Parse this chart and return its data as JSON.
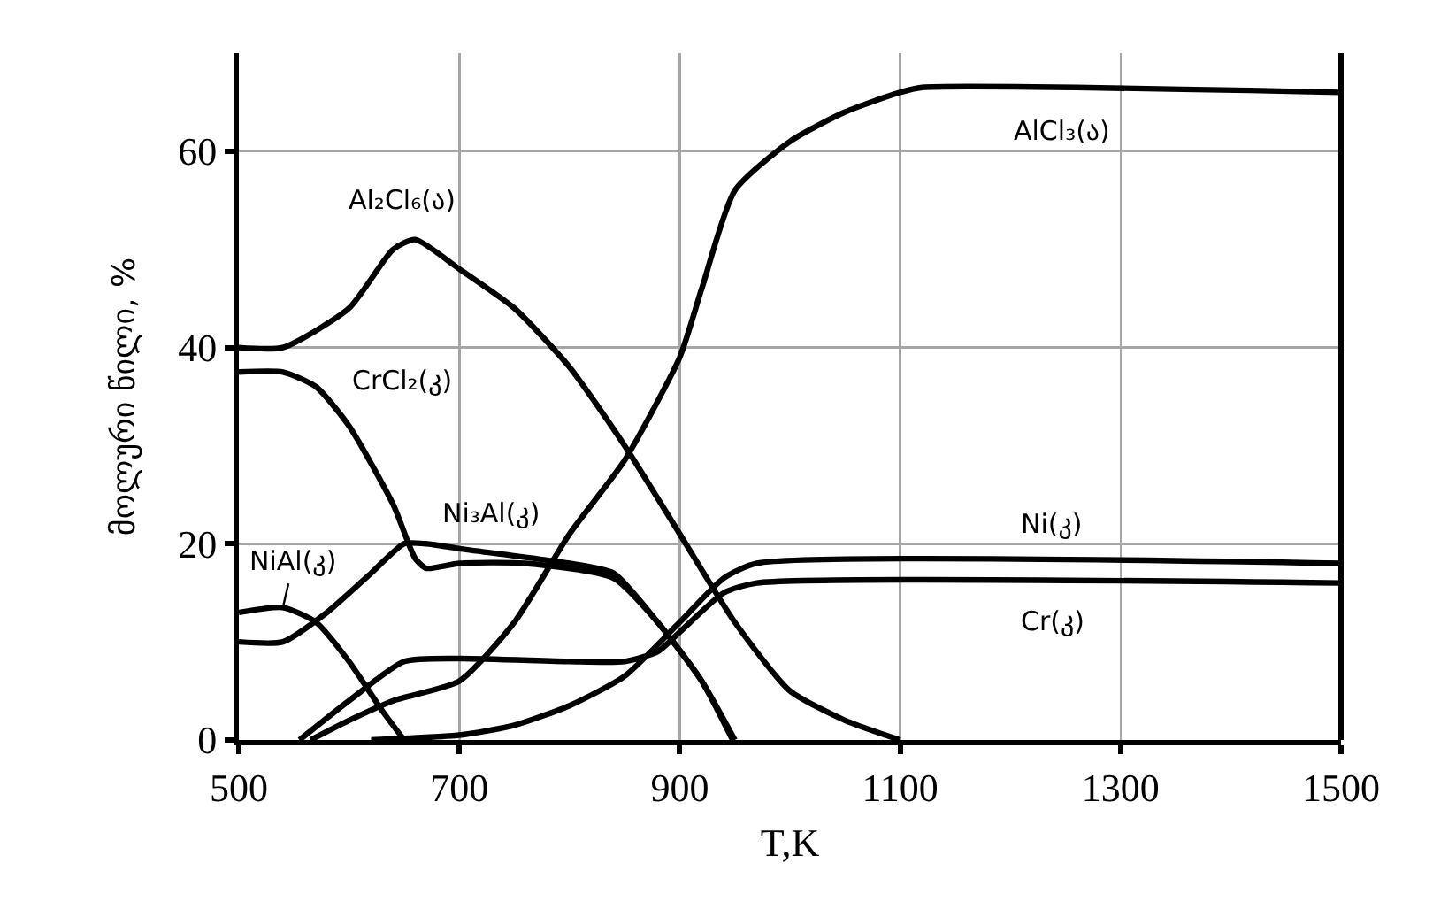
{
  "chart_data": {
    "type": "line",
    "xlabel": "T,K",
    "ylabel": "მოლური წილი, %",
    "xlim": [
      500,
      1500
    ],
    "ylim": [
      0,
      70
    ],
    "xticks": [
      500,
      700,
      900,
      1100,
      1300,
      1500
    ],
    "yticks": [
      0,
      20,
      40,
      60
    ],
    "grid": true,
    "marker": "none",
    "line_style": "solid",
    "series": [
      {
        "color": "#000000",
        "x": [
          565,
          600,
          640,
          700,
          750,
          800,
          850,
          900,
          920,
          950,
          1000,
          1050,
          1100,
          1120,
          1500
        ],
        "values": [
          0,
          2,
          4,
          6,
          12,
          21,
          28.5,
          39,
          46,
          56,
          61,
          64,
          66,
          66.5,
          66
        ]
      },
      {
        "color": "#000000",
        "x": [
          500,
          540,
          600,
          640,
          660,
          700,
          750,
          800,
          850,
          900,
          950,
          1000,
          1050,
          1100
        ],
        "values": [
          40,
          40,
          44,
          50,
          51,
          48,
          44,
          38,
          30,
          21,
          12,
          5,
          2,
          0
        ]
      },
      {
        "color": "#000000",
        "x": [
          500,
          540,
          570,
          600,
          640,
          660,
          670,
          700,
          760,
          840,
          880,
          920,
          950
        ],
        "values": [
          37.5,
          37.5,
          36,
          32,
          24,
          18.5,
          17.5,
          18,
          18,
          16.5,
          12,
          6,
          0
        ]
      },
      {
        "color": "#000000",
        "x": [
          500,
          540,
          580,
          620,
          650,
          670,
          700,
          800,
          840,
          880,
          920,
          948
        ],
        "values": [
          10,
          10,
          13,
          17,
          20,
          20,
          19.5,
          18,
          17,
          12,
          6,
          0
        ]
      },
      {
        "color": "#000000",
        "x": [
          500,
          540,
          570,
          600,
          630,
          650
        ],
        "values": [
          13,
          13.5,
          12,
          8,
          3,
          0
        ]
      },
      {
        "color": "#000000",
        "x": [
          555,
          600,
          650,
          700,
          800,
          850,
          880,
          900,
          940,
          970,
          1500
        ],
        "values": [
          0,
          4,
          8,
          8.3,
          8,
          8,
          9,
          11,
          15,
          16,
          16
        ]
      },
      {
        "color": "#000000",
        "x": [
          620,
          700,
          750,
          800,
          850,
          900,
          940,
          970,
          1500
        ],
        "values": [
          0,
          0.5,
          1.5,
          3.5,
          6.5,
          12,
          16.5,
          18,
          18
        ]
      }
    ],
    "annotations": [
      {
        "text": "AlCl₃(ა)",
        "x": 1246,
        "y": 66
      },
      {
        "text": "Al₂Cl₆(ა)",
        "x": 660,
        "y": 51
      },
      {
        "text": "CrCl₂(კ)",
        "x": 560,
        "y": 37
      },
      {
        "text": "Ni₃Al(კ)",
        "x": 700,
        "y": 19.5
      },
      {
        "text": "NiAl(კ)",
        "x": 540,
        "y": 13.5
      },
      {
        "text": "Ni(კ)",
        "x": 1238,
        "y": 18
      },
      {
        "text": "Cr(კ)",
        "x": 1238,
        "y": 16
      }
    ]
  }
}
